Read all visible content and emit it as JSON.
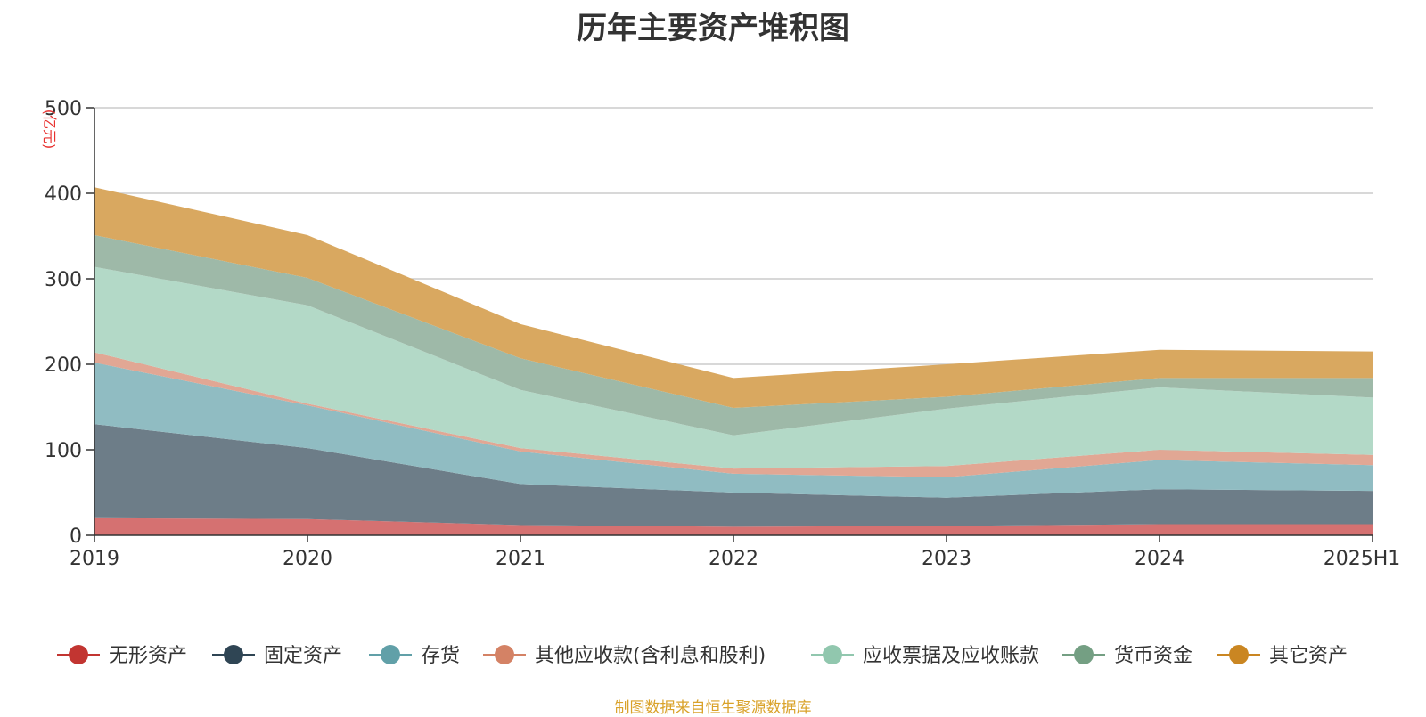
{
  "chart_data": {
    "type": "area",
    "stacked": true,
    "title": "历年主要资产堆积图",
    "ylabel": "(亿元)",
    "xlabel": "",
    "categories": [
      "2019",
      "2020",
      "2021",
      "2022",
      "2023",
      "2024",
      "2025H1"
    ],
    "ylim": [
      0,
      500
    ],
    "yticks": [
      "0",
      "100",
      "200",
      "300",
      "400",
      "500"
    ],
    "grid": true,
    "legend_position": "bottom",
    "series": [
      {
        "name": "无形资产",
        "color": "#c23531",
        "fill": "#d57171",
        "values": [
          20,
          19,
          12,
          10,
          11,
          13,
          13
        ]
      },
      {
        "name": "固定资产",
        "color": "#2f4554",
        "fill": "#6d7d88",
        "values": [
          110,
          83,
          48,
          40,
          33,
          41,
          39
        ]
      },
      {
        "name": "存货",
        "color": "#61a0a8",
        "fill": "#90bcc2",
        "values": [
          72,
          50,
          38,
          22,
          24,
          34,
          30
        ]
      },
      {
        "name": "其他应收款(含利息和股利)",
        "color": "#d48265",
        "fill": "#e1a794",
        "values": [
          12,
          2,
          4,
          6,
          13,
          12,
          12
        ]
      },
      {
        "name": "应收票据及应收账款",
        "color": "#91c7ae",
        "fill": "#b3d9c7",
        "values": [
          100,
          115,
          68,
          39,
          67,
          73,
          67
        ]
      },
      {
        "name": "货币资金",
        "color": "#749f83",
        "fill": "#9eb9a8",
        "values": [
          37,
          32,
          37,
          32,
          14,
          11,
          23
        ]
      },
      {
        "name": "其它资产",
        "color": "#ca8622",
        "fill": "#d9a860",
        "values": [
          56,
          50,
          40,
          35,
          38,
          33,
          31
        ]
      }
    ]
  },
  "source_note": "制图数据来自恒生聚源数据库"
}
